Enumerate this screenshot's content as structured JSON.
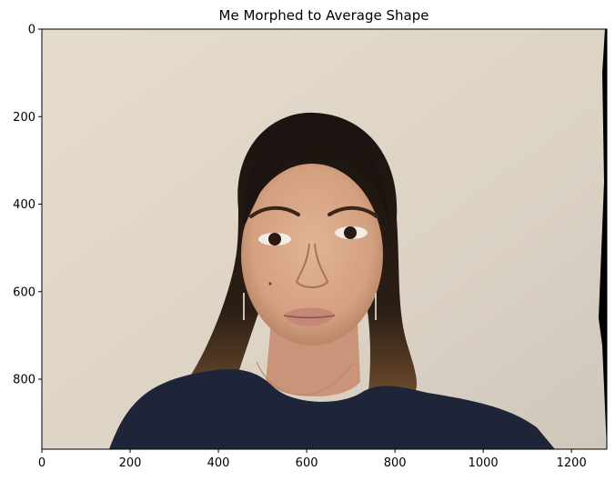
{
  "figure": {
    "title": "Me Morphed to Average Shape",
    "image_description_icon": "portrait-photo",
    "x_axis": {
      "min": 0,
      "max": 1280,
      "ticks": [
        0,
        200,
        400,
        600,
        800,
        1000,
        1200
      ],
      "tick_labels": [
        "0",
        "200",
        "400",
        "600",
        "800",
        "1000",
        "1200"
      ]
    },
    "y_axis": {
      "min": 0,
      "max": 960,
      "inverted": true,
      "ticks": [
        0,
        200,
        400,
        600,
        800
      ],
      "tick_labels": [
        "0",
        "200",
        "400",
        "600",
        "800"
      ]
    },
    "colors": {
      "wall": "#ddd4c6",
      "wall_shadow": "#c9c0b2",
      "hair": "#1e1611",
      "hair_highlight": "#5a3c24",
      "skin": "#d9a888",
      "skin_shadow": "#b9856a",
      "shirt": "#1f2538",
      "lips": "#c58878",
      "border": "#000000"
    }
  }
}
